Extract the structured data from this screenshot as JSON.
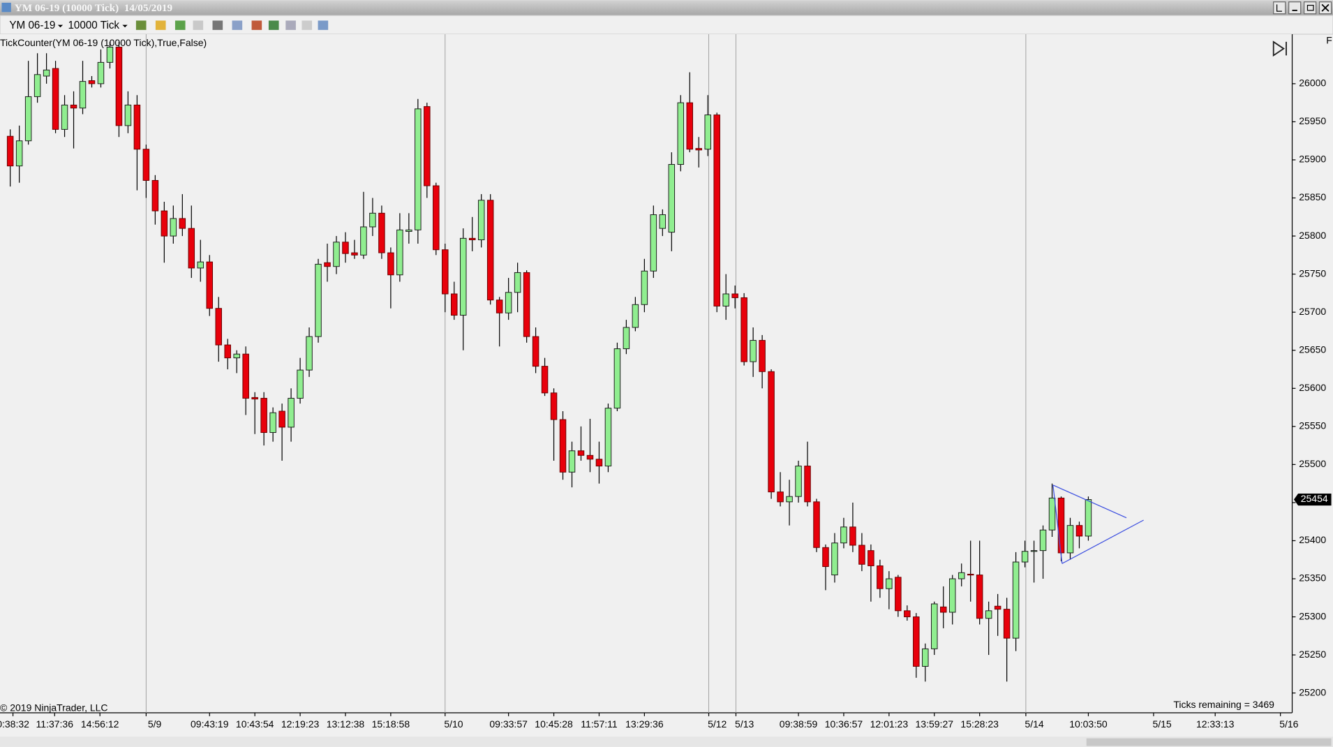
{
  "window": {
    "title": "YM 06-19 (10000 Tick)  14/05/2019",
    "instrument": "YM 06-19",
    "interval": "10000 Tick",
    "indicator": "TickCounter(YM 06-19 (10000 Tick),True,False)",
    "copyright": "© 2019 NinjaTrader, LLC",
    "ticks_remaining": "Ticks remaining = 3469"
  },
  "chart_data": {
    "type": "candlestick",
    "up_color": "#90ee90",
    "down_color": "#e8000b",
    "open": [
      25931,
      25892,
      25925,
      25983,
      26010,
      26020,
      25940,
      25972,
      25968,
      26004,
      26000,
      26028,
      26048,
      25945,
      25972,
      25914,
      25873,
      25833,
      25800,
      25823,
      25810,
      25758,
      25766,
      25705,
      25657,
      25640,
      25645,
      25588,
      25587,
      25542,
      25570,
      25549,
      25587,
      25624,
      25668,
      25765,
      25760,
      25792,
      25778,
      25775,
      25812,
      25830,
      25778,
      25749,
      25806,
      25808,
      25970,
      25866,
      25782,
      25724,
      25696,
      25797,
      25795,
      25847,
      25716,
      25699,
      25726,
      25752,
      25668,
      25629,
      25594,
      25559,
      25490,
      25518,
      25512,
      25507,
      25498,
      25574,
      25652,
      25680,
      25710,
      25754,
      25810,
      25805,
      25894,
      25975,
      25915,
      25914,
      25959,
      25708,
      25724,
      25719,
      25635,
      25663,
      25622,
      25464,
      25451,
      25458,
      25498,
      25451,
      25391,
      25355,
      25397,
      25418,
      25394,
      25387,
      25367,
      25337,
      25352,
      25308,
      25300,
      25235,
      25258,
      25313,
      25306,
      25350,
      25356,
      25355,
      25298,
      25314,
      25310,
      25272,
      25372,
      25386,
      25387,
      25414,
      25456,
      25384,
      25420,
      25406
    ],
    "high": [
      25940,
      25945,
      26030,
      26040,
      26040,
      26030,
      25985,
      25990,
      26030,
      26010,
      26045,
      26055,
      26055,
      25990,
      25985,
      25920,
      25880,
      25845,
      25840,
      25855,
      25840,
      25795,
      25775,
      25720,
      25665,
      25650,
      25655,
      25595,
      25595,
      25575,
      25580,
      25600,
      25640,
      25680,
      25770,
      25790,
      25800,
      25805,
      25795,
      25858,
      25850,
      25840,
      25785,
      25830,
      25830,
      25980,
      25975,
      25870,
      25790,
      25740,
      25810,
      25825,
      25855,
      25855,
      25720,
      25745,
      25765,
      25755,
      25680,
      25640,
      25600,
      25570,
      25530,
      25550,
      25560,
      25530,
      25580,
      25660,
      25690,
      25720,
      25770,
      25840,
      25835,
      25910,
      25985,
      26015,
      25930,
      25985,
      25962,
      25750,
      25735,
      25725,
      25680,
      25670,
      25625,
      25490,
      25480,
      25505,
      25530,
      25455,
      25395,
      25410,
      25430,
      25450,
      25410,
      25395,
      25375,
      25360,
      25355,
      25315,
      25305,
      25265,
      25320,
      25340,
      25355,
      25370,
      25400,
      25400,
      25320,
      25330,
      25325,
      25385,
      25400,
      25400,
      25420,
      25475,
      25458,
      25430,
      25425,
      25458
    ],
    "low": [
      25865,
      25870,
      25920,
      25975,
      26000,
      25935,
      25930,
      25915,
      25960,
      25995,
      25995,
      26020,
      25930,
      25935,
      25860,
      25850,
      25815,
      25765,
      25790,
      25800,
      25745,
      25740,
      25695,
      25635,
      25625,
      25620,
      25565,
      25540,
      25525,
      25530,
      25505,
      25530,
      25580,
      25615,
      25660,
      25740,
      25750,
      25765,
      25770,
      25770,
      25800,
      25770,
      25705,
      25740,
      25790,
      25790,
      25850,
      25775,
      25700,
      25690,
      25650,
      25780,
      25785,
      25710,
      25655,
      25690,
      25700,
      25660,
      25620,
      25590,
      25505,
      25480,
      25470,
      25505,
      25490,
      25475,
      25490,
      25570,
      25645,
      25675,
      25700,
      25745,
      25800,
      25780,
      25885,
      25910,
      25890,
      25905,
      25700,
      25690,
      25705,
      25630,
      25615,
      25600,
      25455,
      25445,
      25420,
      25450,
      25445,
      25385,
      25335,
      25345,
      25390,
      25385,
      25360,
      25320,
      25325,
      25310,
      25300,
      25295,
      25220,
      25215,
      25250,
      25285,
      25290,
      25340,
      25320,
      25290,
      25250,
      25275,
      25215,
      25255,
      25365,
      25345,
      25350,
      25405,
      25373,
      25375,
      25390,
      25400
    ],
    "close": [
      25892,
      25925,
      25983,
      26012,
      26018,
      25940,
      25972,
      25968,
      26003,
      26000,
      26028,
      26048,
      25945,
      25972,
      25914,
      25873,
      25833,
      25800,
      25823,
      25810,
      25758,
      25766,
      25705,
      25657,
      25640,
      25645,
      25587,
      25586,
      25542,
      25568,
      25549,
      25587,
      25624,
      25668,
      25763,
      25760,
      25792,
      25777,
      25775,
      25812,
      25830,
      25778,
      25749,
      25808,
      25808,
      25967,
      25866,
      25782,
      25724,
      25696,
      25797,
      25795,
      25847,
      25716,
      25699,
      25726,
      25752,
      25668,
      25629,
      25594,
      25559,
      25490,
      25518,
      25512,
      25507,
      25498,
      25574,
      25652,
      25680,
      25710,
      25754,
      25828,
      25828,
      25894,
      25975,
      25914,
      25913,
      25959,
      25708,
      25724,
      25719,
      25635,
      25663,
      25622,
      25464,
      25451,
      25458,
      25498,
      25451,
      25391,
      25366,
      25397,
      25418,
      25394,
      25369,
      25367,
      25337,
      25350,
      25308,
      25300,
      25235,
      25258,
      25317,
      25306,
      25350,
      25358,
      25355,
      25298,
      25308,
      25310,
      25272,
      25372,
      25386,
      25387,
      25414,
      25456,
      25384,
      25420,
      25406,
      25454
    ],
    "last_price": 25454,
    "ylim": [
      25174,
      26065
    ],
    "yticks": [
      25200,
      25250,
      25300,
      25350,
      25400,
      25450,
      25500,
      25550,
      25600,
      25650,
      25700,
      25750,
      25800,
      25850,
      25900,
      25950,
      26000
    ],
    "xlim": [
      -1.13,
      141.5
    ],
    "xticks": [
      {
        "value": 0.3,
        "label": "0:38:32"
      },
      {
        "value": 4.9,
        "label": "11:37:36"
      },
      {
        "value": 9.9,
        "label": "14:56:12"
      },
      {
        "value": 15,
        "label": "5/9"
      },
      {
        "value": 22,
        "label": "09:43:19"
      },
      {
        "value": 27,
        "label": "10:43:54"
      },
      {
        "value": 32,
        "label": "12:19:23"
      },
      {
        "value": 37,
        "label": "13:12:38"
      },
      {
        "value": 42,
        "label": "15:18:58"
      },
      {
        "value": 48,
        "label": "5/10"
      },
      {
        "value": 55,
        "label": "09:33:57"
      },
      {
        "value": 60,
        "label": "10:45:28"
      },
      {
        "value": 65,
        "label": "11:57:11"
      },
      {
        "value": 70,
        "label": "13:29:36"
      },
      {
        "value": 77.1,
        "label": "5/12"
      },
      {
        "value": 80.1,
        "label": "5/13"
      },
      {
        "value": 87,
        "label": "09:38:59"
      },
      {
        "value": 92,
        "label": "10:36:57"
      },
      {
        "value": 97,
        "label": "12:01:23"
      },
      {
        "value": 102,
        "label": "13:59:27"
      },
      {
        "value": 107,
        "label": "15:28:23"
      },
      {
        "value": 112.1,
        "label": "5/14"
      },
      {
        "value": 119,
        "label": "10:03:50"
      },
      {
        "value": 126.2,
        "label": "5/15"
      },
      {
        "value": 133,
        "label": "12:33:13"
      },
      {
        "value": 140.2,
        "label": "5/16"
      }
    ],
    "drawings": [
      {
        "color": "#3c4fe0",
        "x": [
          115.1,
          123.2
        ],
        "y": [
          25473,
          25430
        ]
      },
      {
        "color": "#3c4fe0",
        "x": [
          116.1,
          125.1
        ],
        "y": [
          25370,
          25427
        ]
      },
      {
        "color": "#3c4fe0",
        "x": [
          115.1,
          116.1
        ],
        "y": [
          25473,
          25370
        ]
      }
    ]
  }
}
